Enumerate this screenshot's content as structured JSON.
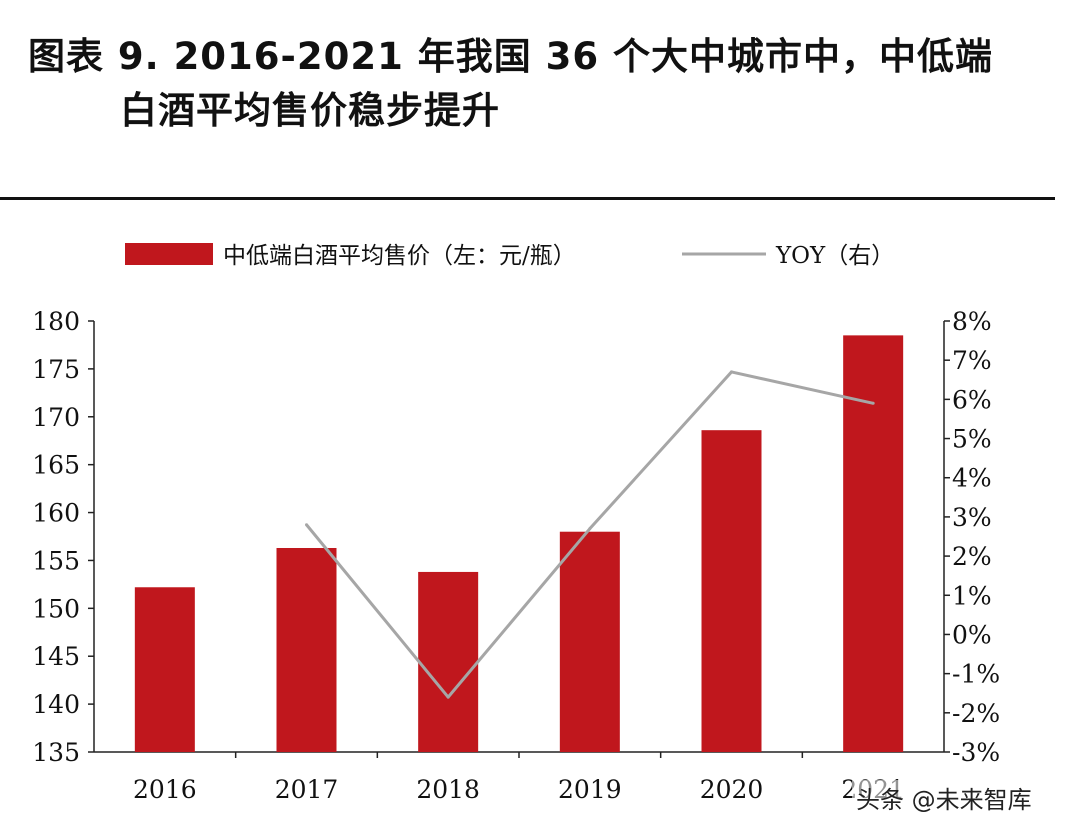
{
  "title": {
    "line1": "图表 9.  2016-2021 年我国 36 个大中城市中，中低端",
    "line2": "白酒平均售价稳步提升"
  },
  "watermark": "头条 @未来智库",
  "colors": {
    "bar": "#C0171D",
    "line": "#A6A6A6",
    "axis": "#222222"
  },
  "chart_data": {
    "type": "bar",
    "categories": [
      "2016",
      "2017",
      "2018",
      "2019",
      "2020",
      "2021"
    ],
    "series": [
      {
        "name": "中低端白酒平均售价（左：元/瓶）",
        "type": "bar",
        "axis": "left",
        "values": [
          152.2,
          156.3,
          153.8,
          158.0,
          168.6,
          178.5
        ]
      },
      {
        "name": "YOY（右）",
        "type": "line",
        "axis": "right",
        "values": [
          null,
          2.8,
          -1.6,
          2.7,
          6.7,
          5.9
        ]
      }
    ],
    "y_left": {
      "min": 135,
      "max": 180,
      "step": 5,
      "ticks": [
        "135",
        "140",
        "145",
        "150",
        "155",
        "160",
        "165",
        "170",
        "175",
        "180"
      ]
    },
    "y_right": {
      "min": -3,
      "max": 8,
      "step": 1,
      "ticks": [
        "-3%",
        "-2%",
        "-1%",
        "0%",
        "1%",
        "2%",
        "3%",
        "4%",
        "5%",
        "6%",
        "7%",
        "8%"
      ]
    },
    "legend_position": "top"
  }
}
